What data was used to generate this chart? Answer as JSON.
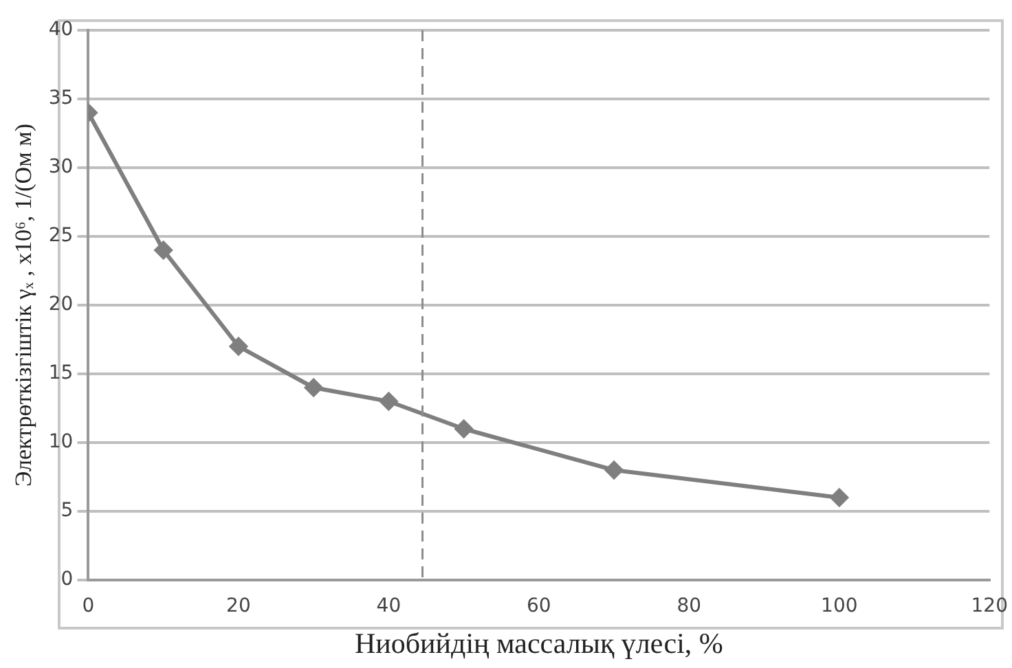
{
  "chart_data": {
    "type": "line",
    "xlabel": "Ниобийдің массалық үлесі, %",
    "ylabel": "Электрөткізгіштік γₓ , x10⁶, 1/(Ом м)",
    "x": [
      0,
      10,
      20,
      30,
      40,
      50,
      70,
      100
    ],
    "series": [
      {
        "color": "#7f7f7f",
        "values": [
          34,
          24,
          17,
          14,
          13,
          11,
          8,
          6
        ]
      }
    ],
    "xlim": [
      0,
      120
    ],
    "xticks": [
      0,
      20,
      40,
      60,
      80,
      100,
      120
    ],
    "ylim": [
      0,
      40
    ],
    "yticks": [
      0,
      5,
      10,
      15,
      20,
      25,
      30,
      35,
      40
    ],
    "grid": "y",
    "legend": false,
    "marker": "diamond",
    "line_style": "solid",
    "ref_lines": [
      {
        "axis": "x",
        "value": 44.5,
        "line_style": "dashed",
        "color": "#8c8c8c"
      }
    ]
  }
}
